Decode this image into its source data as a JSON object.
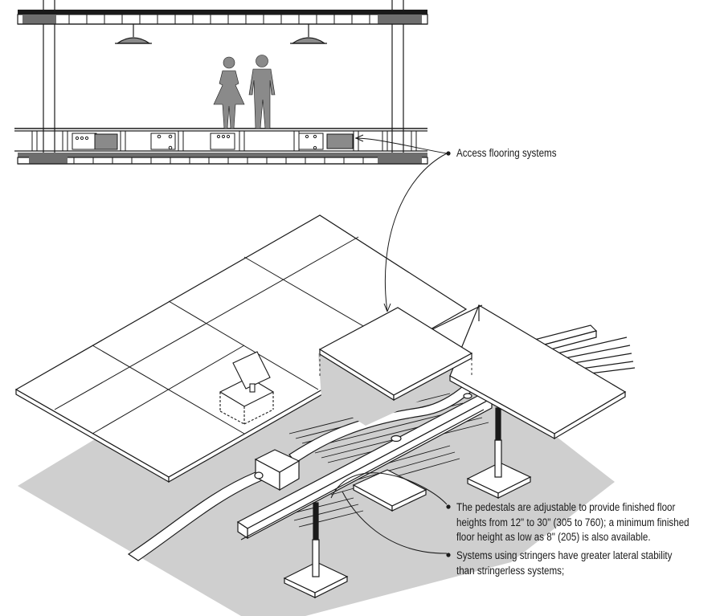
{
  "annotations": {
    "access_flooring": "Access flooring systems",
    "pedestals": [
      "The pedestals are adjustable to provide finished floor",
      "heights from 12\" to 30\" (305 to 760); a minimum finished",
      "floor height as low as 8\" (205) is also available."
    ],
    "stringers": [
      "Systems using stringers have greater lateral stability",
      "than stringerless systems;"
    ]
  },
  "colors": {
    "line": "#1a1a1a",
    "ground": "#cfcfcf",
    "figure": "#8a8a8a",
    "slab": "#6e6e6e",
    "panel": "#ffffff"
  }
}
